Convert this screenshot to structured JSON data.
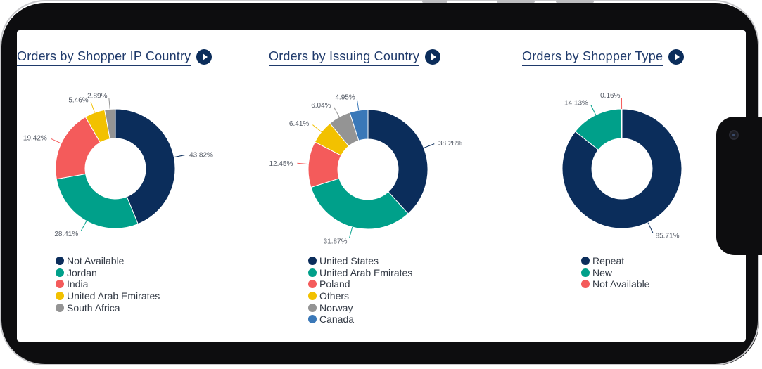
{
  "charts": [
    {
      "title": "Orders by Shopper IP Country",
      "chart_data": {
        "type": "pie",
        "title": "Orders by Shopper IP Country",
        "donut": true,
        "categories": [
          "Not Available",
          "Jordan",
          "India",
          "United Arab Emirates",
          "South Africa"
        ],
        "values": [
          43.82,
          28.41,
          19.42,
          5.46,
          2.89
        ],
        "value_labels": [
          "43.82%",
          "28.41%",
          "19.42%",
          "5.46%",
          "2.89%"
        ],
        "colors": [
          "#0b2d5b",
          "#00a08a",
          "#f45b5b",
          "#f2c100",
          "#949494"
        ],
        "legend": "bottom"
      }
    },
    {
      "title": "Orders by Issuing Country",
      "chart_data": {
        "type": "pie",
        "title": "Orders by Issuing Country",
        "donut": true,
        "categories": [
          "United States",
          "United Arab Emirates",
          "Poland",
          "Others",
          "Norway",
          "Canada"
        ],
        "values": [
          38.28,
          31.87,
          12.45,
          6.41,
          6.04,
          4.95
        ],
        "value_labels": [
          "38.28%",
          "31.87%",
          "12.45%",
          "6.41%",
          "6.04%",
          "4.95%"
        ],
        "colors": [
          "#0b2d5b",
          "#00a08a",
          "#f45b5b",
          "#f2c100",
          "#949494",
          "#3a78b8"
        ],
        "legend": "bottom"
      }
    },
    {
      "title": "Orders by Shopper Type",
      "chart_data": {
        "type": "pie",
        "title": "Orders by Shopper Type",
        "donut": true,
        "categories": [
          "Repeat",
          "New",
          "Not Available"
        ],
        "values": [
          85.71,
          14.13,
          0.16
        ],
        "value_labels": [
          "85.71%",
          "14.13%",
          "0.16%"
        ],
        "colors": [
          "#0b2d5b",
          "#00a08a",
          "#f45b5b"
        ],
        "legend": "bottom"
      }
    }
  ]
}
